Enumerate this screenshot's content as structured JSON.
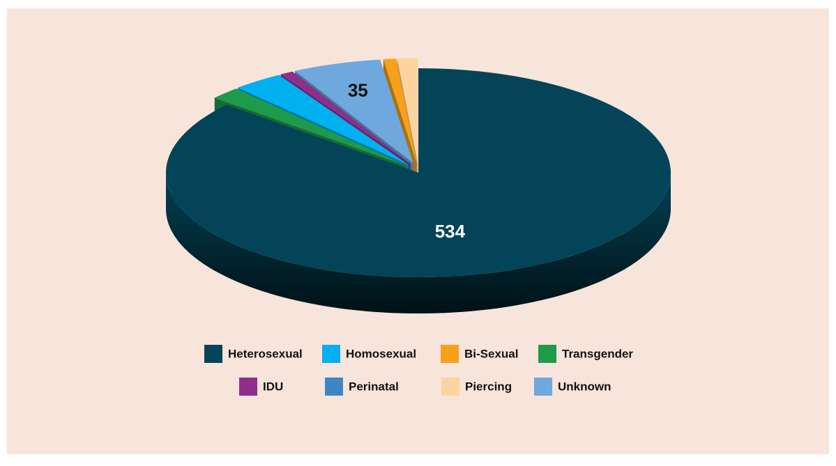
{
  "chart_data": {
    "type": "pie",
    "categories": [
      "Heterosexual",
      "Transgender",
      "Homosexual",
      "IDU",
      "Perinatal",
      "Unknown",
      "Bi-Sexual",
      "Piercing"
    ],
    "values": [
      534,
      12,
      20,
      5,
      0,
      35,
      5,
      8
    ],
    "value_labels": [
      "534",
      null,
      null,
      null,
      null,
      "35",
      null,
      null
    ],
    "colors": [
      "#034459",
      "#1e9a4c",
      "#00b0f0",
      "#8f2e8d",
      "#3d86c6",
      "#6fa8dc",
      "#f7a11a",
      "#fdd49e"
    ],
    "legend": "bottom"
  }
}
